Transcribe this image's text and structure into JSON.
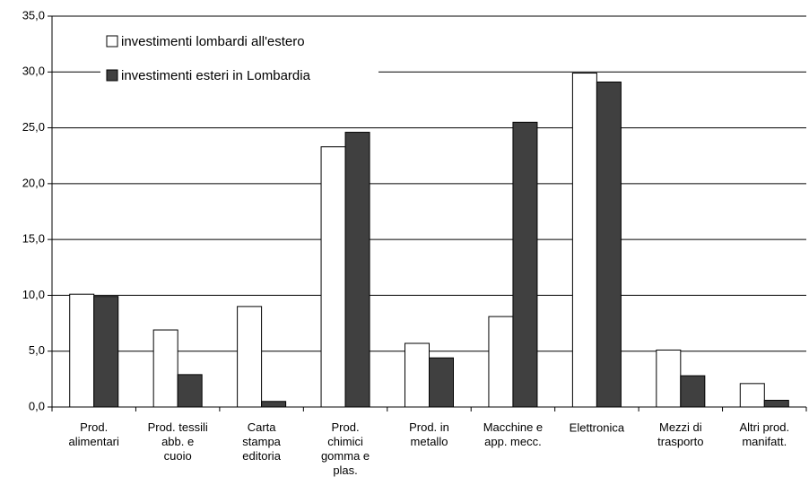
{
  "chart_data": {
    "type": "bar",
    "categories": [
      "Prod.\nalimentari",
      "Prod. tessili\nabb. e\ncuoio",
      "Carta\nstampa\neditoria",
      "Prod.\nchimici\ngomma e\nplas.",
      "Prod. in\nmetallo",
      "Macchine e\napp. mecc.",
      "Elettronica",
      "Mezzi di\ntrasporto",
      "Altri prod.\nmanifatt."
    ],
    "series": [
      {
        "name": "investimenti lombardi all'estero",
        "color": "#ffffff",
        "values": [
          10.1,
          6.9,
          9.0,
          23.3,
          5.7,
          8.1,
          29.9,
          5.1,
          2.1
        ]
      },
      {
        "name": "investimenti esteri in Lombardia",
        "color": "#404040",
        "values": [
          9.9,
          2.9,
          0.5,
          24.6,
          4.4,
          25.5,
          29.1,
          2.8,
          0.6
        ]
      }
    ],
    "ylim": [
      0,
      35
    ],
    "yticks": [
      {
        "value": 0,
        "label": "0,0"
      },
      {
        "value": 5,
        "label": "5,0"
      },
      {
        "value": 10,
        "label": "10,0"
      },
      {
        "value": 15,
        "label": "15,0"
      },
      {
        "value": 20,
        "label": "20,0"
      },
      {
        "value": 25,
        "label": "25,0"
      },
      {
        "value": 30,
        "label": "30,0"
      },
      {
        "value": 35,
        "label": "35,0"
      }
    ],
    "grid": true,
    "legend": "upper-left"
  }
}
